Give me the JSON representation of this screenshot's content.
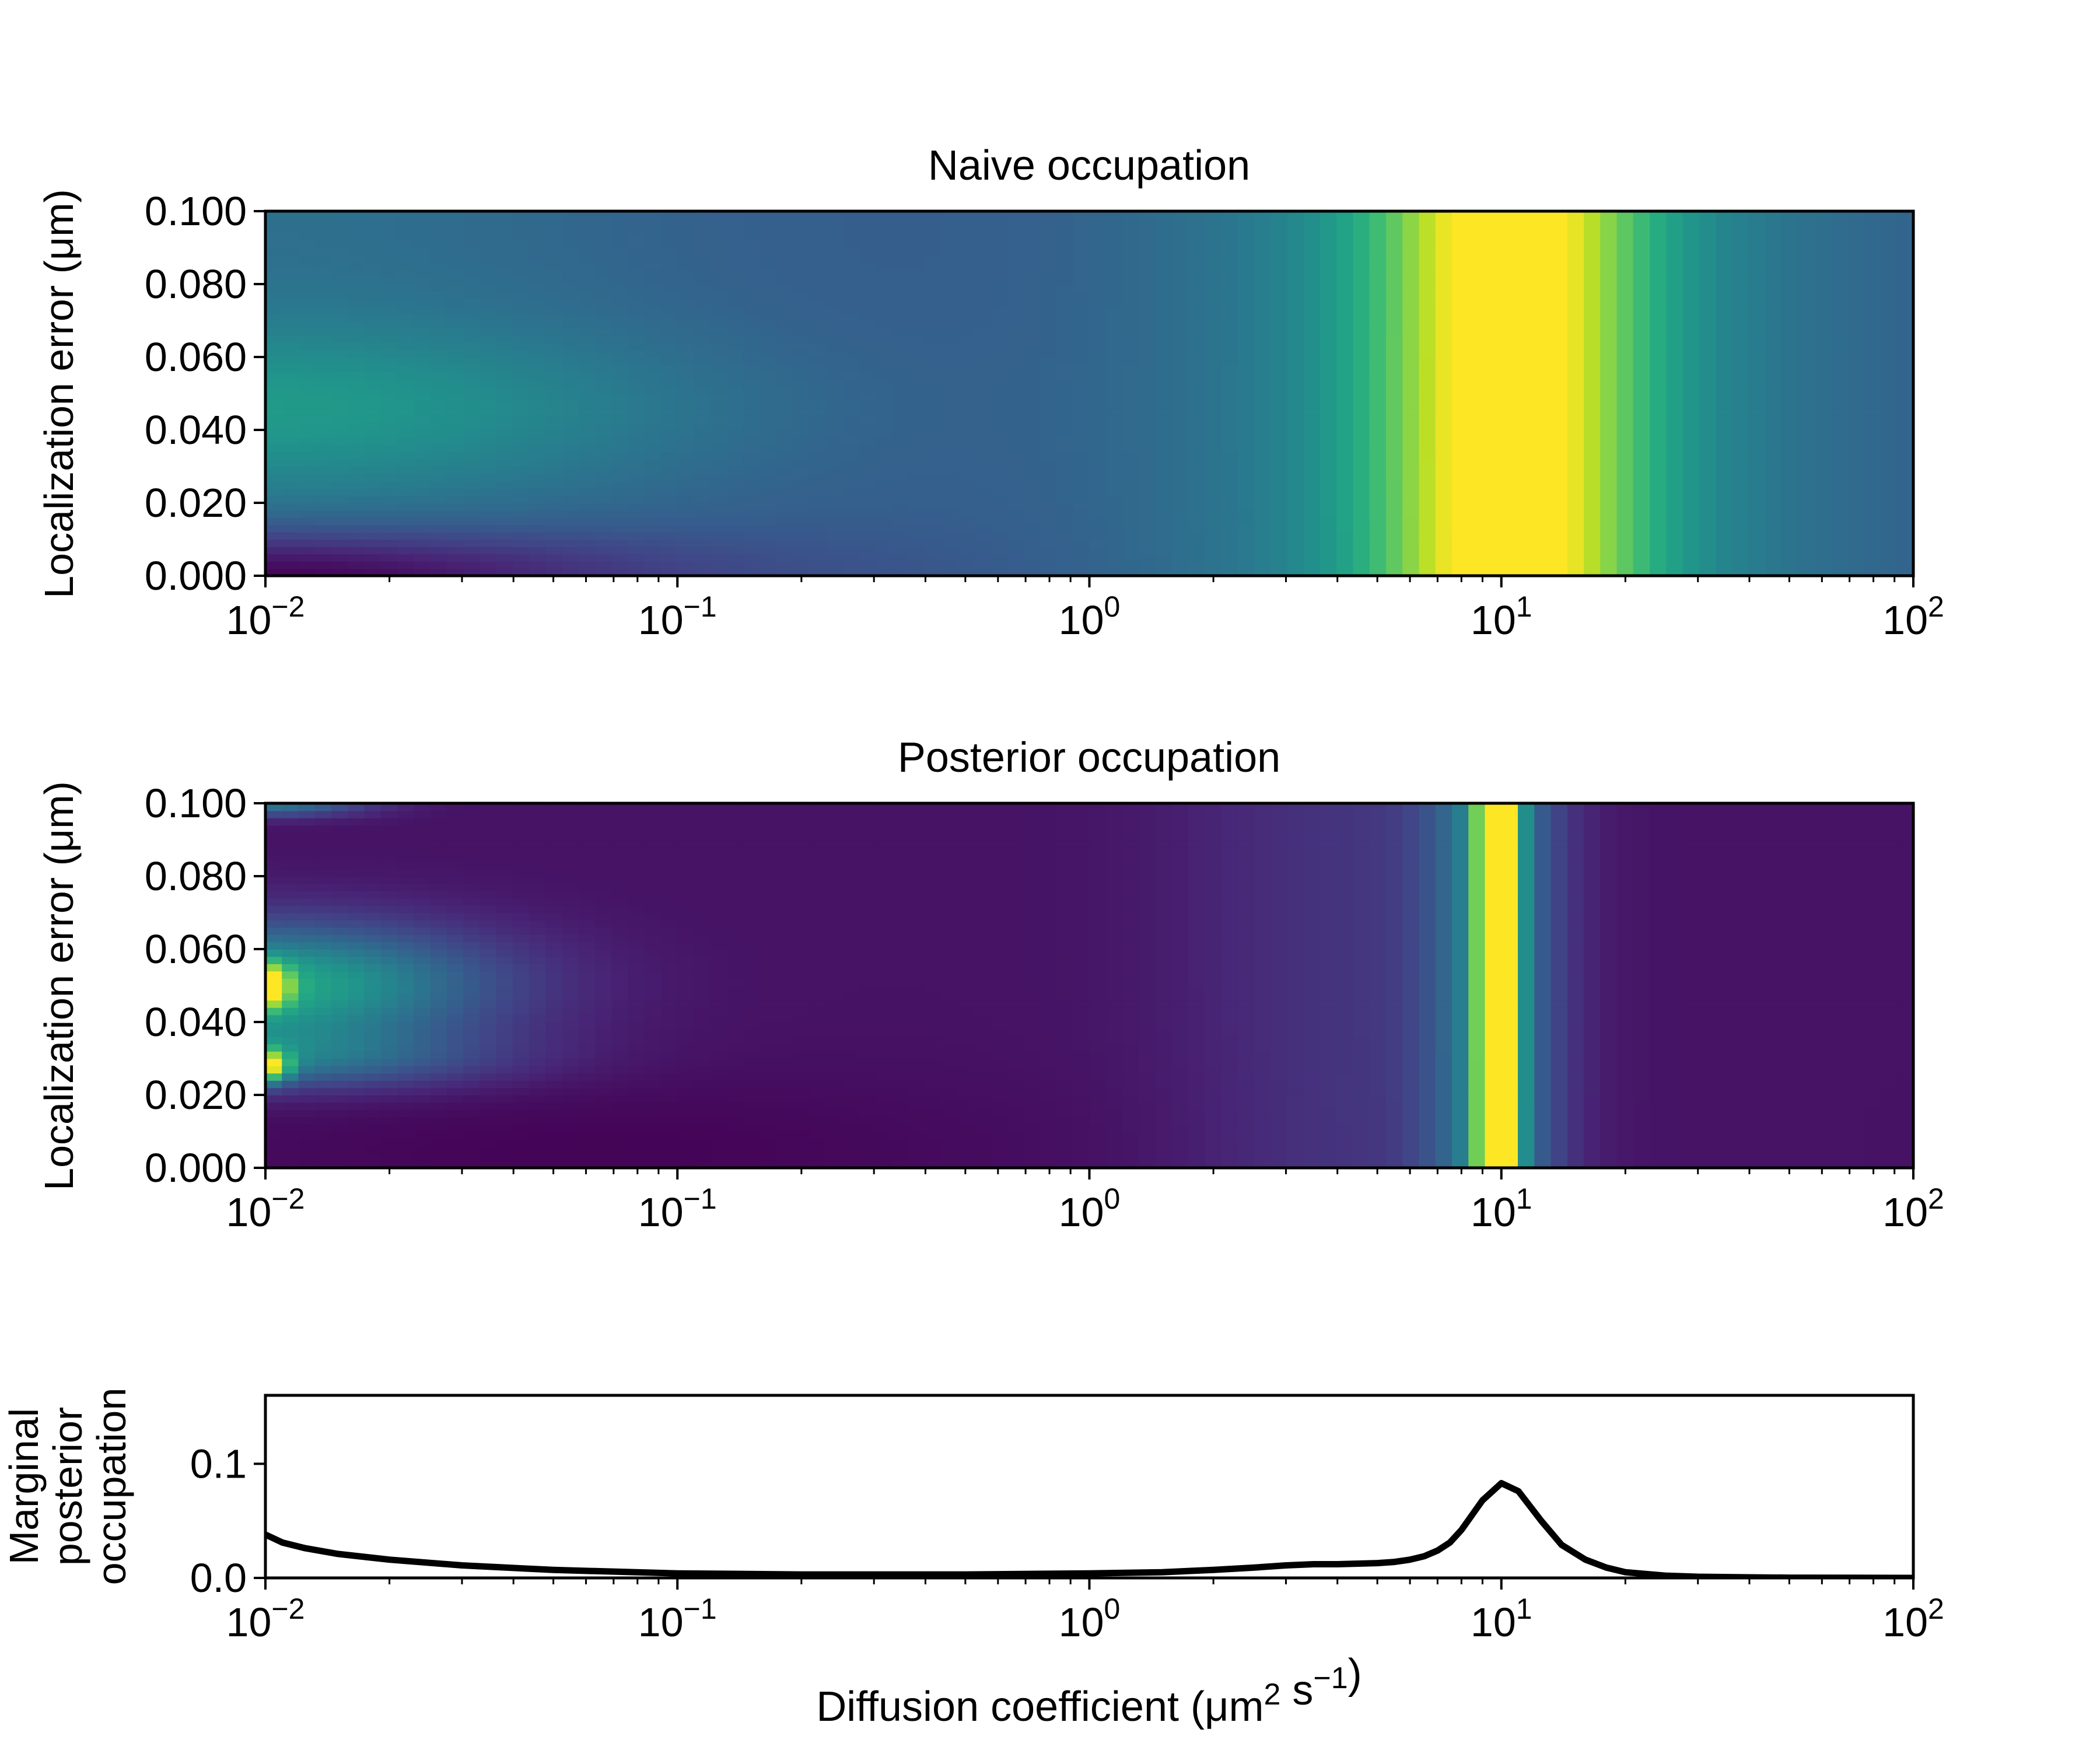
{
  "chart_data": [
    {
      "type": "heatmap",
      "title": "Naive occupation",
      "ylabel": "Localization error (μm)",
      "xscale": "log",
      "xlim": [
        0.01,
        100
      ],
      "ylim": [
        0.0,
        0.1
      ],
      "colormap": "viridis",
      "xticks": [
        {
          "base": "10",
          "exp": "−2"
        },
        {
          "base": "10",
          "exp": "−1"
        },
        {
          "base": "10",
          "exp": "0"
        },
        {
          "base": "10",
          "exp": "1"
        },
        {
          "base": "10",
          "exp": "2"
        }
      ],
      "yticks": [
        "0.000",
        "0.020",
        "0.040",
        "0.060",
        "0.080",
        "0.100"
      ],
      "features": [
        {
          "description": "vertical band of maximum occupation",
          "x_center": 10,
          "y_range": [
            0.0,
            0.1
          ],
          "relative_intensity": 1.0
        },
        {
          "description": "moderate ridge at low diffusion",
          "x_range": [
            0.01,
            0.05
          ],
          "y_center": 0.045,
          "relative_intensity": 0.55
        },
        {
          "description": "minimum at low diffusion, low error",
          "x_range": [
            0.01,
            0.03
          ],
          "y_range": [
            0.0,
            0.01
          ],
          "relative_intensity": 0.0
        }
      ]
    },
    {
      "type": "heatmap",
      "title": "Posterior occupation",
      "ylabel": "Localization error (μm)",
      "xscale": "log",
      "xlim": [
        0.01,
        100
      ],
      "ylim": [
        0.0,
        0.1
      ],
      "colormap": "viridis",
      "xticks": [
        {
          "base": "10",
          "exp": "−2"
        },
        {
          "base": "10",
          "exp": "−1"
        },
        {
          "base": "10",
          "exp": "0"
        },
        {
          "base": "10",
          "exp": "1"
        },
        {
          "base": "10",
          "exp": "2"
        }
      ],
      "yticks": [
        "0.000",
        "0.020",
        "0.040",
        "0.060",
        "0.080",
        "0.100"
      ],
      "features": [
        {
          "description": "narrow vertical band of maximum occupation",
          "x_center": 9.5,
          "y_range": [
            0.0,
            0.1
          ],
          "relative_intensity": 1.0
        },
        {
          "description": "peak at lowest diffusion",
          "x": 0.01,
          "y_range": [
            0.025,
            0.032
          ],
          "relative_intensity": 1.0
        },
        {
          "description": "peak at lowest diffusion",
          "x": 0.01,
          "y_range": [
            0.044,
            0.053
          ],
          "relative_intensity": 0.95
        },
        {
          "description": "strip at top edge",
          "y": 0.1,
          "x_range": [
            0.01,
            0.03
          ],
          "relative_intensity": 0.45
        }
      ]
    },
    {
      "type": "line",
      "ylabel": "Marginal posterior occupation",
      "xlabel": "Diffusion coefficient (μm² s⁻¹)",
      "xscale": "log",
      "xlim": [
        0.01,
        100
      ],
      "ylim": [
        0.0,
        0.16
      ],
      "xticks": [
        {
          "base": "10",
          "exp": "−2"
        },
        {
          "base": "10",
          "exp": "−1"
        },
        {
          "base": "10",
          "exp": "0"
        },
        {
          "base": "10",
          "exp": "1"
        },
        {
          "base": "10",
          "exp": "2"
        }
      ],
      "yticks": [
        "0.0",
        "0.1"
      ],
      "series": [
        {
          "color": "#000000",
          "x": [
            0.01,
            0.011,
            0.0125,
            0.015,
            0.02,
            0.03,
            0.05,
            0.1,
            0.2,
            0.5,
            1.0,
            1.5,
            2.0,
            2.5,
            3.0,
            3.5,
            4.0,
            5.0,
            5.5,
            6.0,
            6.5,
            7.0,
            7.5,
            8.0,
            9.0,
            10.0,
            11.0,
            12.5,
            14.0,
            16.0,
            18.0,
            20.0,
            25.0,
            30.0,
            40.0,
            50.0,
            100.0
          ],
          "y": [
            0.038,
            0.031,
            0.026,
            0.021,
            0.016,
            0.011,
            0.007,
            0.004,
            0.003,
            0.003,
            0.004,
            0.005,
            0.007,
            0.009,
            0.011,
            0.012,
            0.012,
            0.013,
            0.014,
            0.016,
            0.019,
            0.024,
            0.031,
            0.042,
            0.068,
            0.083,
            0.076,
            0.05,
            0.029,
            0.016,
            0.009,
            0.005,
            0.002,
            0.001,
            0.0005,
            0.0002,
            0.0
          ]
        }
      ]
    }
  ]
}
